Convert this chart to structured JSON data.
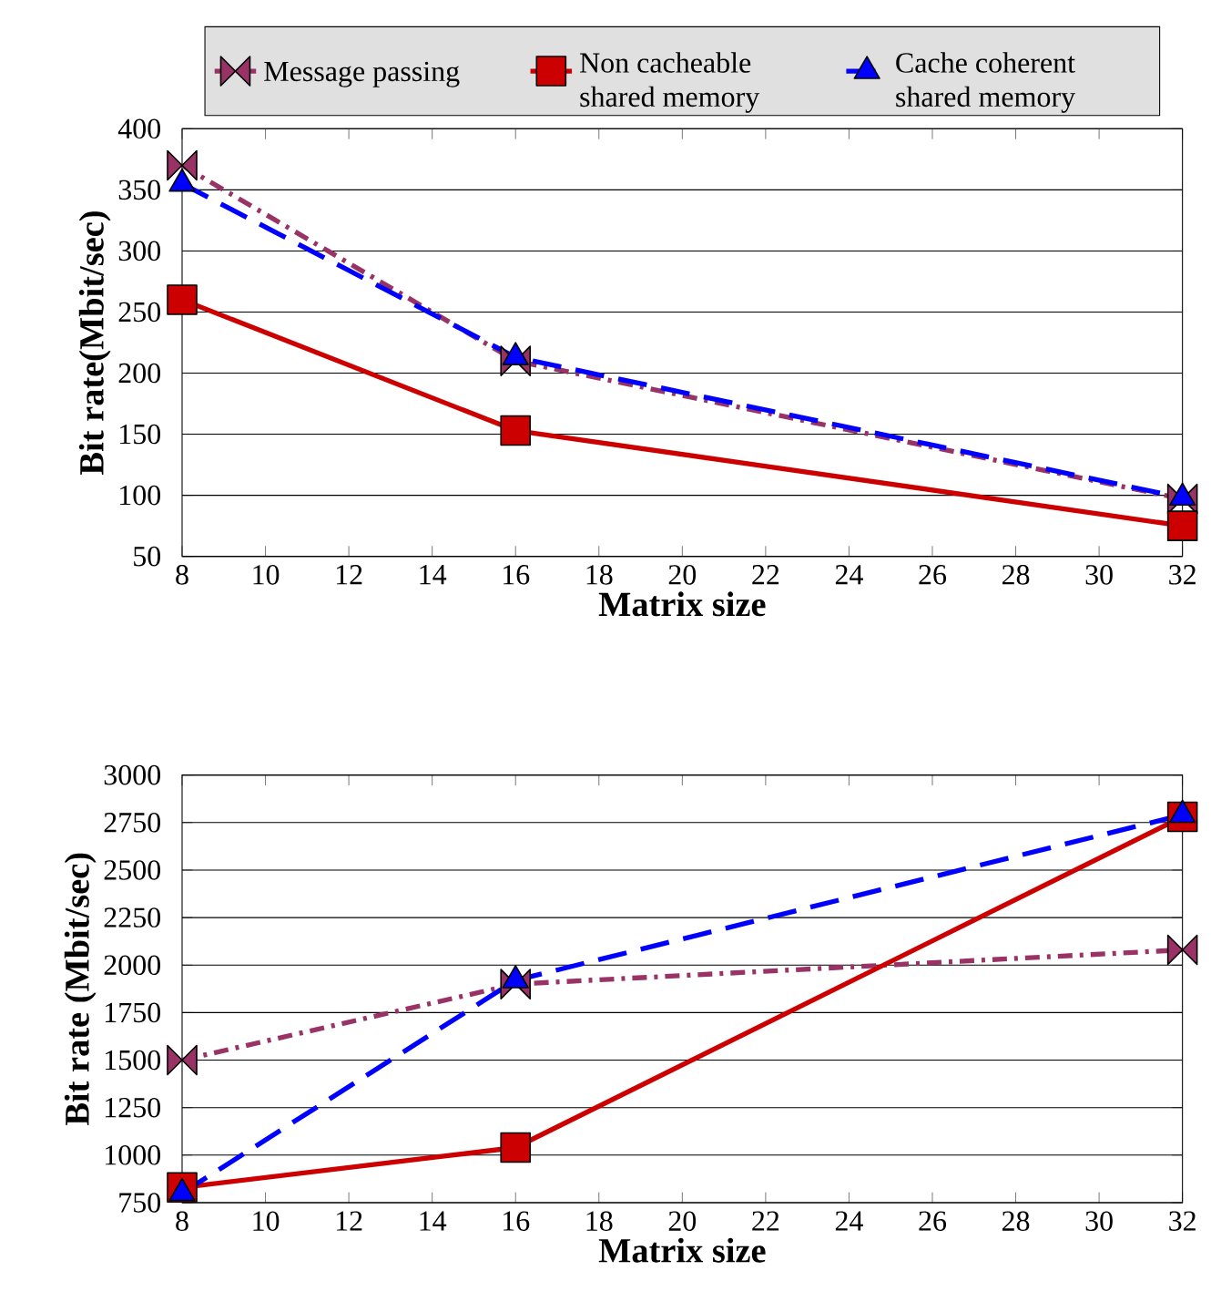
{
  "chart_data": [
    {
      "type": "line",
      "xlabel": "Matrix size",
      "ylabel": "Bit rate(Mbit/sec)",
      "x": [
        8,
        16,
        32
      ],
      "xlim": [
        8,
        32
      ],
      "xticks": [
        8,
        10,
        12,
        14,
        16,
        18,
        20,
        22,
        24,
        26,
        28,
        30,
        32
      ],
      "ylim": [
        50,
        400
      ],
      "yticks": [
        50,
        100,
        150,
        200,
        250,
        300,
        350,
        400
      ],
      "grid": "y",
      "legend": "top",
      "series": [
        {
          "name": "Message passing",
          "color": "#993366",
          "values": [
            370,
            210,
            97
          ],
          "marker": "diamond",
          "line_style": "dashdot"
        },
        {
          "name": "Non cacheable shared memory",
          "color": "#cc0000",
          "values": [
            260,
            153,
            75
          ],
          "marker": "square",
          "line_style": "solid"
        },
        {
          "name": "Cache coherent shared memory",
          "color": "#0000ff",
          "values": [
            355,
            213,
            98
          ],
          "marker": "triangle",
          "line_style": "dashed"
        }
      ]
    },
    {
      "type": "line",
      "xlabel": "Matrix size",
      "ylabel": "Bit rate (Mbit/sec)",
      "x": [
        8,
        16,
        32
      ],
      "xlim": [
        8,
        32
      ],
      "xticks": [
        8,
        10,
        12,
        14,
        16,
        18,
        20,
        22,
        24,
        26,
        28,
        30,
        32
      ],
      "ylim": [
        750,
        3000
      ],
      "yticks": [
        750,
        1000,
        1250,
        1500,
        1750,
        2000,
        2250,
        2500,
        2750,
        3000
      ],
      "grid": "y",
      "series": [
        {
          "color": "#993366",
          "values": [
            1500,
            1900,
            2080
          ],
          "marker": "diamond",
          "line_style": "dashdot"
        },
        {
          "color": "#cc0000",
          "values": [
            830,
            1040,
            2780
          ],
          "marker": "square",
          "line_style": "solid"
        },
        {
          "color": "#0000ff",
          "values": [
            800,
            1920,
            2790
          ],
          "marker": "triangle",
          "line_style": "dashed"
        }
      ]
    }
  ]
}
